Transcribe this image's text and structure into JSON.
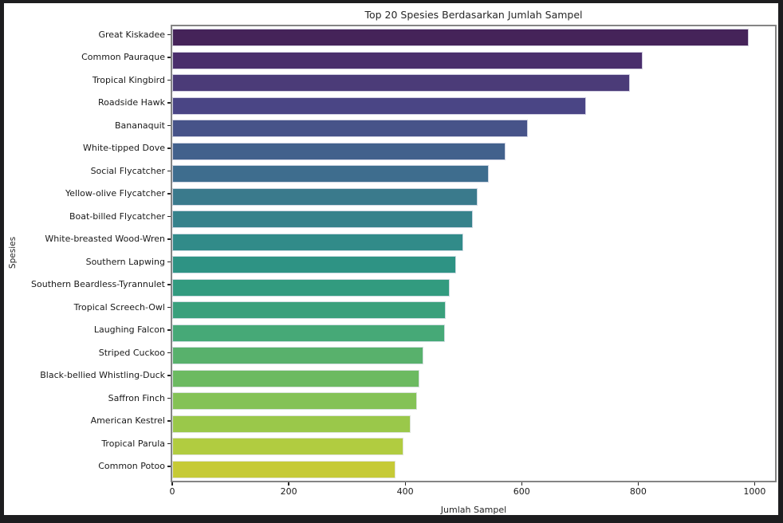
{
  "figure": {
    "title": "Top 20 Spesies Berdasarkan Jumlah Sampel",
    "xlabel": "Jumlah Sampel",
    "ylabel": "Spesies"
  },
  "chart_data": {
    "type": "bar",
    "orientation": "horizontal",
    "title": "Top 20 Spesies Berdasarkan Jumlah Sampel",
    "xlabel": "Jumlah Sampel",
    "ylabel": "Spesies",
    "xlim": [
      0,
      1035
    ],
    "xticks": [
      0,
      200,
      400,
      600,
      800,
      1000
    ],
    "grid": false,
    "legend": false,
    "palette": "viridis-desaturated",
    "categories": [
      "Great Kiskadee",
      "Common Pauraque",
      "Tropical Kingbird",
      "Roadside Hawk",
      "Bananaquit",
      "White-tipped Dove",
      "Social Flycatcher",
      "Yellow-olive Flycatcher",
      "Boat-billed Flycatcher",
      "White-breasted Wood-Wren",
      "Southern Lapwing",
      "Southern Beardless-Tyrannulet",
      "Tropical Screech-Owl",
      "Laughing Falcon",
      "Striped Cuckoo",
      "Black-bellied Whistling-Duck",
      "Saffron Finch",
      "American Kestrel",
      "Tropical Parula",
      "Common Potoo"
    ],
    "values": [
      990,
      808,
      786,
      710,
      610,
      572,
      543,
      525,
      516,
      500,
      487,
      477,
      470,
      468,
      431,
      424,
      420,
      409,
      397,
      383
    ],
    "bar_colors": [
      "#452359",
      "#4A2E6C",
      "#4B3B78",
      "#4A4585",
      "#475389",
      "#42618C",
      "#3E6D8E",
      "#3A7A8C",
      "#36828B",
      "#318B89",
      "#2E9384",
      "#329B7F",
      "#39A07C",
      "#46A977",
      "#58B16C",
      "#6CBA61",
      "#84C256",
      "#9AC84A",
      "#B1CC40",
      "#C6CA36"
    ]
  },
  "colors": {
    "frame": "#1d1d1f",
    "figure_bg": "#ffffff",
    "plot_border": "#848484",
    "text": "#262626"
  }
}
